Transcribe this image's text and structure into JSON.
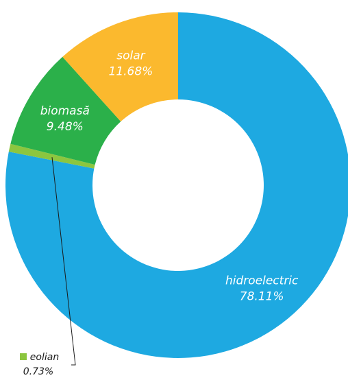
{
  "chart_data": {
    "type": "pie",
    "variant": "donut",
    "slices": [
      {
        "label": "hidroelectric",
        "value": 78.11,
        "value_label": "78.11%",
        "color": "#1EA9E1",
        "label_color": "#ffffff"
      },
      {
        "label": "eolian",
        "value": 0.73,
        "value_label": "0.73%",
        "color": "#8CC63F",
        "label_color": "#1a1a1a"
      },
      {
        "label": "biomasă",
        "value": 9.48,
        "value_label": "9.48%",
        "color": "#2BB04A",
        "label_color": "#ffffff"
      },
      {
        "label": "solar",
        "value": 11.68,
        "value_label": "11.68%",
        "color": "#FBB92E",
        "label_color": "#ffffff"
      }
    ],
    "start_angle": "12 o'clock",
    "direction": "clockwise",
    "legend": "none"
  }
}
